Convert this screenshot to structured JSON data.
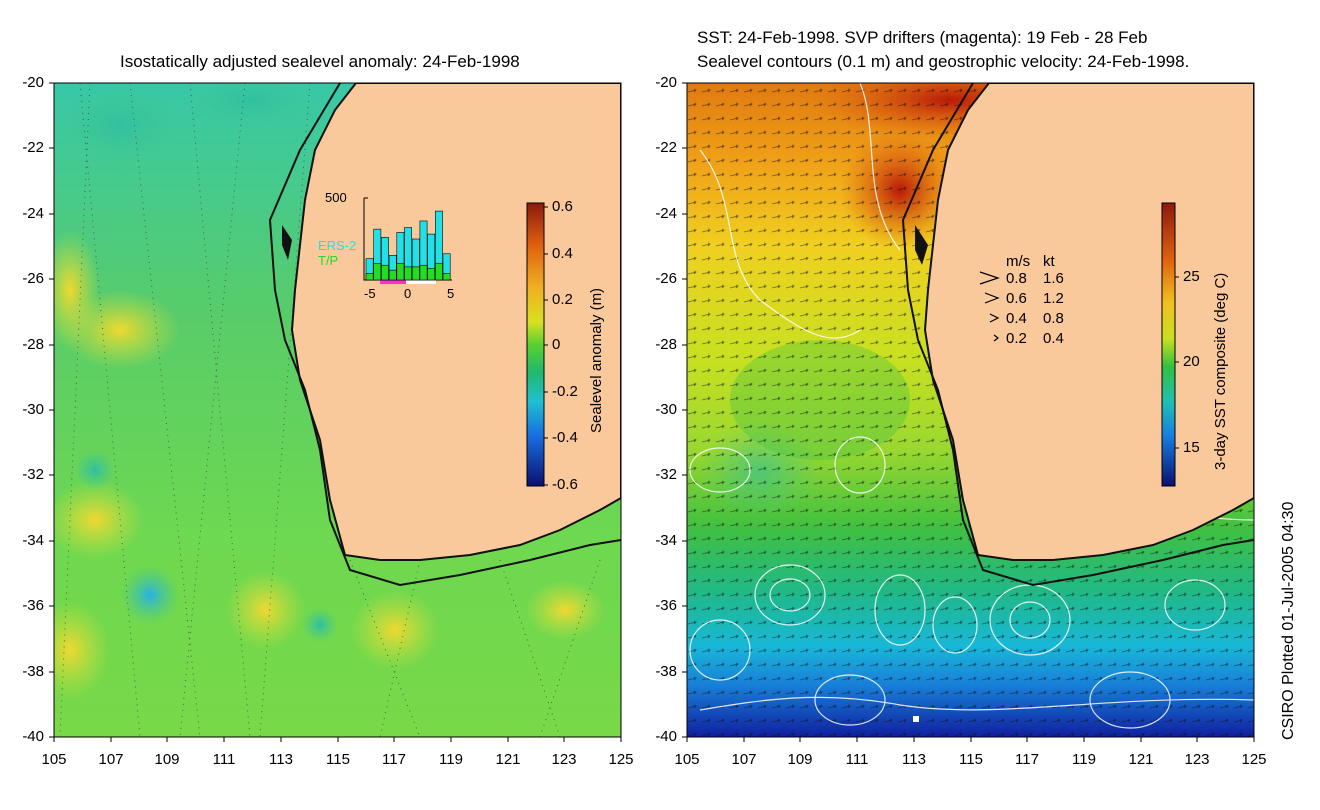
{
  "left_panel": {
    "title": "Isostatically adjusted sealevel anomaly: 24-Feb-1998",
    "y_ticks": [
      "-20",
      "-22",
      "-24",
      "-26",
      "-28",
      "-30",
      "-32",
      "-34",
      "-36",
      "-38",
      "-40"
    ],
    "x_ticks": [
      "105",
      "107",
      "109",
      "111",
      "113",
      "115",
      "117",
      "119",
      "121",
      "123",
      "125"
    ],
    "colorbar_label": "Sealevel anomaly (m)",
    "colorbar_ticks": [
      "0.6",
      "0.4",
      "0.2",
      "0",
      "-0.2",
      "-0.4",
      "-0.6"
    ],
    "inset": {
      "y_max_label": "500",
      "x_ticks": [
        "-5",
        "0",
        "5"
      ],
      "legend_ers2": "ERS-2",
      "legend_tp": "T/P",
      "ers2_counts": [
        130,
        310,
        260,
        150,
        290,
        320,
        250,
        360,
        280,
        420,
        160
      ],
      "tp_counts": [
        40,
        100,
        90,
        60,
        100,
        80,
        80,
        90,
        70,
        100,
        40
      ],
      "ers2_color": "#22e0e8",
      "tp_color": "#22dd22"
    }
  },
  "right_panel": {
    "title_line1": "SST: 24-Feb-1998. SVP drifters (magenta): 19 Feb - 28 Feb",
    "title_line2": "Sealevel contours (0.1 m) and geostrophic velocity: 24-Feb-1998.",
    "y_ticks": [
      "-20",
      "-22",
      "-24",
      "-26",
      "-28",
      "-30",
      "-32",
      "-34",
      "-36",
      "-38",
      "-40"
    ],
    "x_ticks": [
      "105",
      "107",
      "109",
      "111",
      "113",
      "115",
      "117",
      "119",
      "121",
      "123",
      "125"
    ],
    "colorbar_label": "3-day SST composite (deg C)",
    "colorbar_ticks": [
      "25",
      "20",
      "15"
    ],
    "velocity_key": {
      "header_ms": "m/s",
      "header_kt": "kt",
      "rows": [
        {
          "ms": "0.8",
          "kt": "1.6"
        },
        {
          "ms": "0.6",
          "kt": "1.2"
        },
        {
          "ms": "0.4",
          "kt": "0.8"
        },
        {
          "ms": "0.2",
          "kt": "0.4"
        }
      ]
    }
  },
  "credit": "CSIRO Plotted 01-Jul-2005 04:30",
  "colors": {
    "land": "#f9c89b",
    "coast": "#111111"
  }
}
